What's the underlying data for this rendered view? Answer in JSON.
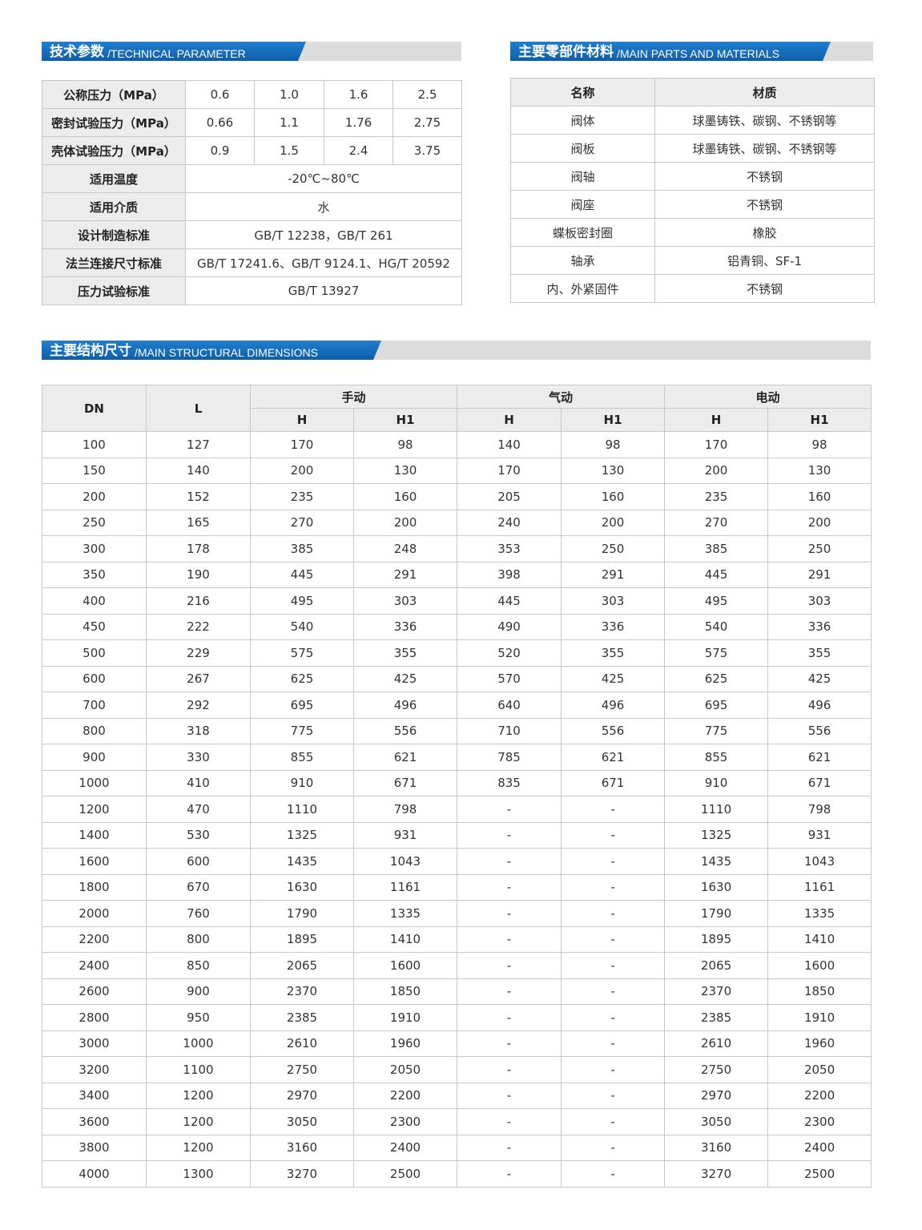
{
  "tech": {
    "title_zh": "技术参数",
    "title_en": "/TECHNICAL PARAMETER",
    "rows": [
      {
        "label": "公称压力（MPa）",
        "values": [
          "0.6",
          "1.0",
          "1.6",
          "2.5"
        ]
      },
      {
        "label": "密封试验压力（MPa）",
        "values": [
          "0.66",
          "1.1",
          "1.76",
          "2.75"
        ]
      },
      {
        "label": "壳体试验压力（MPa）",
        "values": [
          "0.9",
          "1.5",
          "2.4",
          "3.75"
        ]
      },
      {
        "label": "适用温度",
        "value": "-20℃~80℃"
      },
      {
        "label": "适用介质",
        "value": "水"
      },
      {
        "label": "设计制造标准",
        "value": "GB/T 12238，GB/T 261"
      },
      {
        "label": "法兰连接尺寸标准",
        "value": "GB/T 17241.6、GB/T 9124.1、HG/T 20592"
      },
      {
        "label": "压力试验标准",
        "value": "GB/T 13927"
      }
    ]
  },
  "parts": {
    "title_zh": "主要零部件材料",
    "title_en": "/MAIN PARTS AND MATERIALS",
    "headers": [
      "名称",
      "材质"
    ],
    "rows": [
      [
        "阀体",
        "球墨铸铁、碳钢、不锈钢等"
      ],
      [
        "阀板",
        "球墨铸铁、碳钢、不锈钢等"
      ],
      [
        "阀轴",
        "不锈钢"
      ],
      [
        "阀座",
        "不锈钢"
      ],
      [
        "蝶板密封圈",
        "橡胶"
      ],
      [
        "轴承",
        "铝青铜、SF-1"
      ],
      [
        "内、外紧固件",
        "不锈钢"
      ]
    ]
  },
  "dims": {
    "title_zh": "主要结构尺寸",
    "title_en": "/MAIN STRUCTURAL DIMENSIONS",
    "col_dn": "DN",
    "col_l": "L",
    "groups": [
      "手动",
      "气动",
      "电动"
    ],
    "sub": [
      "H",
      "H1"
    ],
    "rows": [
      [
        "100",
        "127",
        "170",
        "98",
        "140",
        "98",
        "170",
        "98"
      ],
      [
        "150",
        "140",
        "200",
        "130",
        "170",
        "130",
        "200",
        "130"
      ],
      [
        "200",
        "152",
        "235",
        "160",
        "205",
        "160",
        "235",
        "160"
      ],
      [
        "250",
        "165",
        "270",
        "200",
        "240",
        "200",
        "270",
        "200"
      ],
      [
        "300",
        "178",
        "385",
        "248",
        "353",
        "250",
        "385",
        "250"
      ],
      [
        "350",
        "190",
        "445",
        "291",
        "398",
        "291",
        "445",
        "291"
      ],
      [
        "400",
        "216",
        "495",
        "303",
        "445",
        "303",
        "495",
        "303"
      ],
      [
        "450",
        "222",
        "540",
        "336",
        "490",
        "336",
        "540",
        "336"
      ],
      [
        "500",
        "229",
        "575",
        "355",
        "520",
        "355",
        "575",
        "355"
      ],
      [
        "600",
        "267",
        "625",
        "425",
        "570",
        "425",
        "625",
        "425"
      ],
      [
        "700",
        "292",
        "695",
        "496",
        "640",
        "496",
        "695",
        "496"
      ],
      [
        "800",
        "318",
        "775",
        "556",
        "710",
        "556",
        "775",
        "556"
      ],
      [
        "900",
        "330",
        "855",
        "621",
        "785",
        "621",
        "855",
        "621"
      ],
      [
        "1000",
        "410",
        "910",
        "671",
        "835",
        "671",
        "910",
        "671"
      ],
      [
        "1200",
        "470",
        "1110",
        "798",
        "-",
        "-",
        "1110",
        "798"
      ],
      [
        "1400",
        "530",
        "1325",
        "931",
        "-",
        "-",
        "1325",
        "931"
      ],
      [
        "1600",
        "600",
        "1435",
        "1043",
        "-",
        "-",
        "1435",
        "1043"
      ],
      [
        "1800",
        "670",
        "1630",
        "1161",
        "-",
        "-",
        "1630",
        "1161"
      ],
      [
        "2000",
        "760",
        "1790",
        "1335",
        "-",
        "-",
        "1790",
        "1335"
      ],
      [
        "2200",
        "800",
        "1895",
        "1410",
        "-",
        "-",
        "1895",
        "1410"
      ],
      [
        "2400",
        "850",
        "2065",
        "1600",
        "-",
        "-",
        "2065",
        "1600"
      ],
      [
        "2600",
        "900",
        "2370",
        "1850",
        "-",
        "-",
        "2370",
        "1850"
      ],
      [
        "2800",
        "950",
        "2385",
        "1910",
        "-",
        "-",
        "2385",
        "1910"
      ],
      [
        "3000",
        "1000",
        "2610",
        "1960",
        "-",
        "-",
        "2610",
        "1960"
      ],
      [
        "3200",
        "1100",
        "2750",
        "2050",
        "-",
        "-",
        "2750",
        "2050"
      ],
      [
        "3400",
        "1200",
        "2970",
        "2200",
        "-",
        "-",
        "2970",
        "2200"
      ],
      [
        "3600",
        "1200",
        "3050",
        "2300",
        "-",
        "-",
        "3050",
        "2300"
      ],
      [
        "3800",
        "1200",
        "3160",
        "2400",
        "-",
        "-",
        "3160",
        "2400"
      ],
      [
        "4000",
        "1300",
        "3270",
        "2500",
        "-",
        "-",
        "3270",
        "2500"
      ]
    ]
  }
}
